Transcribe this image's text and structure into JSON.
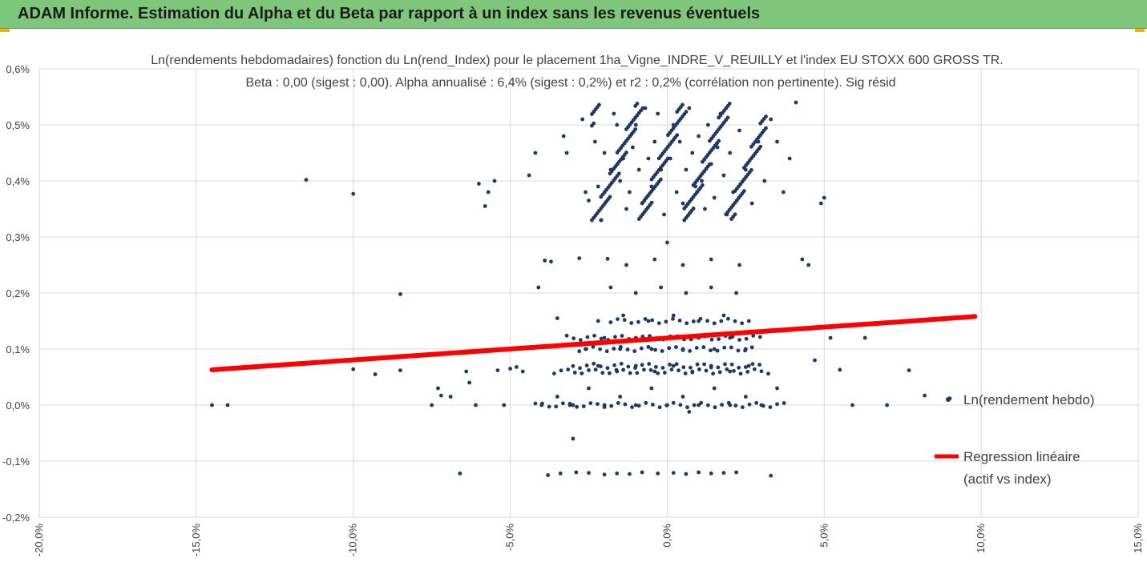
{
  "header": {
    "title": "ADAM Informe. Estimation du Alpha et du Beta par rapport à un index sans les revenus éventuels"
  },
  "colors": {
    "banner": "#7dc67a",
    "points": "#1f3864",
    "regression": "#ff0000",
    "grid": "#d9d9d9",
    "corner_accent": "#f2b400"
  },
  "chart_data": {
    "type": "scatter",
    "title": "Ln(rendements hebdomadaires) fonction du Ln(rend_Index) pour le placement 1ha_Vigne_INDRE_V_REUILLY et l'index EU STOXX 600 GROSS TR.",
    "subtitle": "Beta : 0,00 (sigest : 0,00). Alpha annualisé : 6,4% (sigest : 0,2%) et r2 : 0,2% (corrélation non pertinente). Sig résid",
    "xlabel": "",
    "ylabel": "",
    "xlim": [
      -20,
      15
    ],
    "ylim": [
      -0.2,
      0.6
    ],
    "grid": true,
    "legend_position": "right",
    "x_ticks": [
      "-20,0%",
      "-15,0%",
      "-10,0%",
      "-5,0%",
      "0,0%",
      "5,0%",
      "10,0%",
      "15,0%"
    ],
    "y_ticks": [
      "-0,2%",
      "-0,1%",
      "0,0%",
      "0,1%",
      "0,2%",
      "0,3%",
      "0,4%",
      "0,5%",
      "0,6%"
    ],
    "series": [
      {
        "name": "Ln(rendement hebdo)",
        "kind": "scatter",
        "points": [
          [
            -14.5,
            0.0
          ],
          [
            -14.0,
            0.0
          ],
          [
            -11.5,
            0.402
          ],
          [
            -10.0,
            0.377
          ],
          [
            -10.0,
            0.064
          ],
          [
            -9.3,
            0.055
          ],
          [
            -8.5,
            0.198
          ],
          [
            -8.5,
            0.062
          ],
          [
            -7.5,
            0.0
          ],
          [
            -7.3,
            0.03
          ],
          [
            -7.2,
            0.017
          ],
          [
            -6.9,
            0.015
          ],
          [
            -6.6,
            -0.122
          ],
          [
            -6.4,
            0.06
          ],
          [
            -6.3,
            0.04
          ],
          [
            -6.1,
            0.0
          ],
          [
            -6.0,
            0.395
          ],
          [
            -5.8,
            0.355
          ],
          [
            -5.7,
            0.38
          ],
          [
            -5.5,
            0.4
          ],
          [
            -5.4,
            0.062
          ],
          [
            -5.2,
            0.0
          ],
          [
            -5.0,
            0.065
          ],
          [
            -4.8,
            0.068
          ],
          [
            -4.6,
            0.06
          ],
          [
            -4.4,
            0.41
          ],
          [
            -4.2,
            0.45
          ],
          [
            -4.1,
            0.21
          ],
          [
            -3.9,
            0.258
          ],
          [
            -3.7,
            0.256
          ],
          [
            -3.5,
            0.155
          ],
          [
            -3.3,
            0.48
          ],
          [
            -3.2,
            0.45
          ],
          [
            -3.1,
            0.0
          ],
          [
            -3.0,
            -0.06
          ],
          [
            -2.8,
            0.262
          ],
          [
            -2.7,
            0.51
          ],
          [
            -2.6,
            0.38
          ],
          [
            -2.5,
            0.365
          ],
          [
            -2.3,
            0.47
          ],
          [
            -2.2,
            0.39
          ],
          [
            -2.1,
            0.33
          ],
          [
            -2.0,
            0.45
          ],
          [
            -1.9,
            0.261
          ],
          [
            -1.8,
            0.42
          ],
          [
            -1.7,
            0.52
          ],
          [
            -1.6,
            0.5
          ],
          [
            -1.5,
            0.4
          ],
          [
            -1.4,
            0.44
          ],
          [
            -1.3,
            0.35
          ],
          [
            -1.2,
            0.38
          ],
          [
            -1.1,
            0.46
          ],
          [
            -1.0,
            0.5
          ],
          [
            -0.9,
            0.42
          ],
          [
            -0.8,
            0.36
          ],
          [
            -0.7,
            0.53
          ],
          [
            -0.6,
            0.44
          ],
          [
            -0.5,
            0.39
          ],
          [
            -0.4,
            0.47
          ],
          [
            -0.3,
            0.52
          ],
          [
            -0.2,
            0.42
          ],
          [
            -0.1,
            0.34
          ],
          [
            0.0,
            0.29
          ],
          [
            0.1,
            0.44
          ],
          [
            0.2,
            0.5
          ],
          [
            0.3,
            0.38
          ],
          [
            0.4,
            0.47
          ],
          [
            0.5,
            0.36
          ],
          [
            0.6,
            0.42
          ],
          [
            0.7,
            0.53
          ],
          [
            0.8,
            0.45
          ],
          [
            0.9,
            0.39
          ],
          [
            1.0,
            0.48
          ],
          [
            1.1,
            0.4
          ],
          [
            1.2,
            0.35
          ],
          [
            1.3,
            0.5
          ],
          [
            1.4,
            0.43
          ],
          [
            1.5,
            0.37
          ],
          [
            1.6,
            0.46
          ],
          [
            1.7,
            0.52
          ],
          [
            1.8,
            0.41
          ],
          [
            1.9,
            0.34
          ],
          [
            2.0,
            0.45
          ],
          [
            2.1,
            0.38
          ],
          [
            2.3,
            0.49
          ],
          [
            2.5,
            0.42
          ],
          [
            2.7,
            0.36
          ],
          [
            2.9,
            0.47
          ],
          [
            3.1,
            0.4
          ],
          [
            3.3,
            0.51
          ],
          [
            3.5,
            0.47
          ],
          [
            3.7,
            0.38
          ],
          [
            3.9,
            0.44
          ],
          [
            4.1,
            0.54
          ],
          [
            4.3,
            0.26
          ],
          [
            4.5,
            0.25
          ],
          [
            4.7,
            0.08
          ],
          [
            4.9,
            0.36
          ],
          [
            5.0,
            0.37
          ],
          [
            5.2,
            0.12
          ],
          [
            5.5,
            0.063
          ],
          [
            5.9,
            0.0
          ],
          [
            6.3,
            0.12
          ],
          [
            7.0,
            0.0
          ],
          [
            7.7,
            0.062
          ],
          [
            8.2,
            0.017
          ],
          [
            9.0,
            0.012
          ],
          [
            -3.8,
            -0.125
          ],
          [
            -3.4,
            -0.122
          ],
          [
            -2.9,
            -0.12
          ],
          [
            -2.5,
            -0.121
          ],
          [
            -2.0,
            -0.124
          ],
          [
            -1.6,
            -0.122
          ],
          [
            -1.2,
            -0.123
          ],
          [
            -0.8,
            -0.12
          ],
          [
            -0.3,
            -0.122
          ],
          [
            0.2,
            -0.121
          ],
          [
            0.6,
            -0.123
          ],
          [
            1.0,
            -0.12
          ],
          [
            1.4,
            -0.122
          ],
          [
            1.8,
            -0.121
          ],
          [
            2.2,
            -0.12
          ],
          [
            3.3,
            -0.126
          ],
          [
            -2.6,
            0.1
          ],
          [
            -2.0,
            0.12
          ],
          [
            -1.5,
            0.1
          ],
          [
            -1.0,
            0.12
          ],
          [
            -0.5,
            0.1
          ],
          [
            0.0,
            0.12
          ],
          [
            0.5,
            0.1
          ],
          [
            1.0,
            0.12
          ],
          [
            1.5,
            0.1
          ],
          [
            2.0,
            0.12
          ],
          [
            2.5,
            0.1
          ],
          [
            -2.2,
            0.15
          ],
          [
            -1.4,
            0.16
          ],
          [
            -0.6,
            0.15
          ],
          [
            0.2,
            0.16
          ],
          [
            1.0,
            0.15
          ],
          [
            1.8,
            0.16
          ],
          [
            2.6,
            0.15
          ],
          [
            -1.8,
            0.21
          ],
          [
            -1.0,
            0.2
          ],
          [
            -0.2,
            0.21
          ],
          [
            0.6,
            0.2
          ],
          [
            1.4,
            0.21
          ],
          [
            2.2,
            0.2
          ],
          [
            -2.2,
            0.07
          ],
          [
            -1.6,
            0.06
          ],
          [
            -1.0,
            0.07
          ],
          [
            -0.4,
            0.06
          ],
          [
            0.2,
            0.07
          ],
          [
            0.8,
            0.06
          ],
          [
            1.4,
            0.07
          ],
          [
            2.0,
            0.06
          ],
          [
            2.6,
            0.07
          ],
          [
            -1.3,
            0.25
          ],
          [
            -0.4,
            0.26
          ],
          [
            0.5,
            0.25
          ],
          [
            1.4,
            0.26
          ],
          [
            2.3,
            0.25
          ],
          [
            -3.5,
            0.015
          ],
          [
            -2.5,
            0.03
          ],
          [
            -1.5,
            0.015
          ],
          [
            -0.5,
            0.03
          ],
          [
            0.5,
            0.015
          ],
          [
            1.5,
            0.03
          ],
          [
            2.5,
            0.015
          ],
          [
            3.5,
            0.03
          ],
          [
            -4.0,
            0.0
          ],
          [
            -3.0,
            0.0
          ],
          [
            -2.0,
            0.0
          ],
          [
            -1.0,
            0.0
          ],
          [
            0.0,
            0.0
          ],
          [
            1.0,
            0.0
          ],
          [
            2.0,
            0.0
          ],
          [
            3.0,
            0.0
          ],
          [
            0.7,
            -0.012
          ]
        ]
      },
      {
        "name": "Regression linéaire\n(actif vs index)",
        "kind": "line",
        "points": [
          [
            -14.5,
            0.063
          ],
          [
            9.8,
            0.158
          ]
        ]
      }
    ],
    "legend": [
      "Ln(rendement hebdo)",
      "Regression linéaire",
      "(actif vs index)"
    ]
  }
}
